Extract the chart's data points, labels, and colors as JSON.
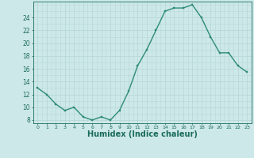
{
  "x": [
    0,
    1,
    2,
    3,
    4,
    5,
    6,
    7,
    8,
    9,
    10,
    11,
    12,
    13,
    14,
    15,
    16,
    17,
    18,
    19,
    20,
    21,
    22,
    23
  ],
  "y": [
    13,
    12,
    10.5,
    9.5,
    10,
    8.5,
    8,
    8.5,
    8,
    9.5,
    12.5,
    16.5,
    19,
    22,
    25,
    25.5,
    25.5,
    26,
    24,
    21,
    18.5,
    18.5,
    16.5,
    15.5
  ],
  "line_color": "#2e8b77",
  "marker": "s",
  "marker_size": 2.0,
  "bg_color": "#cde8e8",
  "grid_color": "#b8d8d8",
  "tick_color": "#1a6b5a",
  "xlabel": "Humidex (Indice chaleur)",
  "xlabel_fontsize": 7,
  "ylabel_ticks": [
    8,
    10,
    12,
    14,
    16,
    18,
    20,
    22,
    24
  ],
  "xlim": [
    -0.5,
    23.5
  ],
  "ylim": [
    7.5,
    26.5
  ],
  "xtick_labels": [
    "0",
    "1",
    "2",
    "3",
    "4",
    "5",
    "6",
    "7",
    "8",
    "9",
    "10",
    "11",
    "12",
    "13",
    "14",
    "15",
    "16",
    "17",
    "18",
    "19",
    "20",
    "21",
    "22",
    "23"
  ],
  "line_width": 1.0
}
